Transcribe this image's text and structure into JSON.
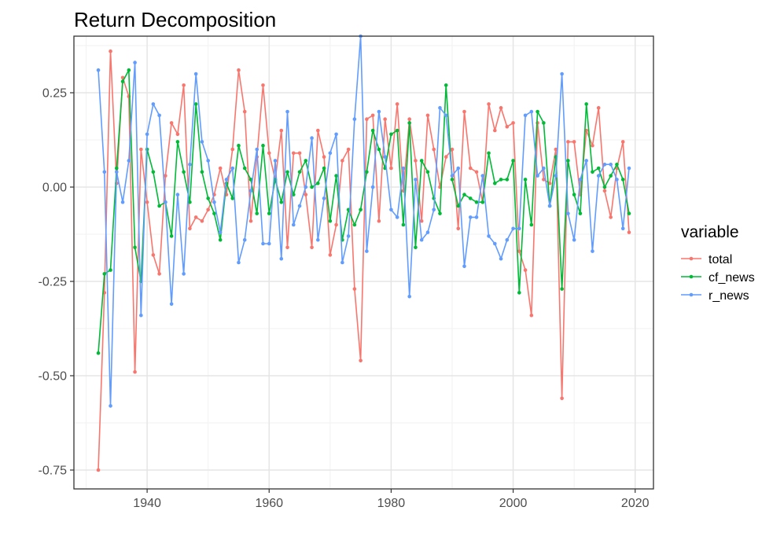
{
  "chart_data": {
    "type": "line",
    "title": "Return Decomposition",
    "xlabel": "",
    "ylabel": "",
    "xlim": [
      1928,
      2023
    ],
    "ylim": [
      -0.8,
      0.4
    ],
    "x_ticks": [
      1940,
      1960,
      1980,
      2000,
      2020
    ],
    "x_tick_labels": [
      "1940",
      "1960",
      "1980",
      "2000",
      "2020"
    ],
    "y_ticks": [
      -0.75,
      -0.5,
      -0.25,
      0.0,
      0.25
    ],
    "y_tick_labels": [
      "-0.75",
      "-0.50",
      "-0.25",
      "0.00",
      "0.25"
    ],
    "grid": true,
    "legend": {
      "title": "variable",
      "position": "right",
      "entries": [
        "total",
        "cf_news",
        "r_news"
      ]
    },
    "x": [
      1932,
      1933,
      1934,
      1935,
      1936,
      1937,
      1938,
      1939,
      1940,
      1941,
      1942,
      1943,
      1944,
      1945,
      1946,
      1947,
      1948,
      1949,
      1950,
      1951,
      1952,
      1953,
      1954,
      1955,
      1956,
      1957,
      1958,
      1959,
      1960,
      1961,
      1962,
      1963,
      1964,
      1965,
      1966,
      1967,
      1968,
      1969,
      1970,
      1971,
      1972,
      1973,
      1974,
      1975,
      1976,
      1977,
      1978,
      1979,
      1980,
      1981,
      1982,
      1983,
      1984,
      1985,
      1986,
      1987,
      1988,
      1989,
      1990,
      1991,
      1992,
      1993,
      1994,
      1995,
      1996,
      1997,
      1998,
      1999,
      2000,
      2001,
      2002,
      2003,
      2004,
      2005,
      2006,
      2007,
      2008,
      2009,
      2010,
      2011,
      2012,
      2013,
      2014,
      2015,
      2016,
      2017,
      2018,
      2019
    ],
    "series": [
      {
        "name": "total",
        "color": "#F8766D",
        "values": [
          -0.75,
          -0.28,
          0.36,
          0.01,
          0.29,
          0.24,
          -0.49,
          0.1,
          -0.04,
          -0.18,
          -0.23,
          0.03,
          0.17,
          0.14,
          0.27,
          -0.11,
          -0.08,
          -0.09,
          -0.06,
          -0.02,
          0.05,
          -0.02,
          0.1,
          0.31,
          0.2,
          -0.09,
          0.08,
          0.27,
          0.09,
          0.02,
          0.15,
          -0.16,
          0.09,
          0.09,
          -0.02,
          -0.16,
          0.15,
          0.08,
          -0.18,
          -0.1,
          0.07,
          0.1,
          -0.27,
          -0.46,
          0.18,
          0.19,
          -0.09,
          0.18,
          0.05,
          0.22,
          -0.01,
          0.18,
          0.07,
          -0.09,
          0.19,
          0.1,
          0.0,
          0.08,
          0.1,
          -0.11,
          0.2,
          0.05,
          0.04,
          -0.04,
          0.22,
          0.15,
          0.21,
          0.16,
          0.17,
          -0.17,
          -0.22,
          -0.34,
          0.17,
          0.02,
          0.01,
          0.1,
          -0.56,
          0.12,
          0.12,
          -0.02,
          0.15,
          0.11,
          0.21,
          -0.01,
          -0.08,
          0.05,
          0.12,
          -0.12
        ]
      },
      {
        "name": "cf_news",
        "color": "#00BA38",
        "values": [
          -0.44,
          -0.23,
          -0.22,
          0.05,
          0.28,
          0.31,
          -0.16,
          -0.25,
          0.1,
          0.04,
          -0.05,
          -0.04,
          -0.13,
          0.12,
          0.04,
          -0.04,
          0.22,
          0.04,
          -0.03,
          -0.07,
          -0.14,
          0.01,
          -0.03,
          0.11,
          0.05,
          0.02,
          -0.07,
          0.11,
          -0.07,
          0.02,
          -0.04,
          0.04,
          -0.02,
          0.04,
          0.07,
          0.0,
          0.01,
          0.05,
          -0.09,
          0.03,
          -0.14,
          -0.06,
          -0.1,
          -0.06,
          0.04,
          0.15,
          0.1,
          0.05,
          0.14,
          0.15,
          -0.1,
          0.17,
          -0.16,
          0.07,
          0.04,
          -0.03,
          -0.07,
          0.27,
          0.02,
          -0.05,
          -0.02,
          -0.03,
          -0.04,
          -0.04,
          0.09,
          0.01,
          0.02,
          0.02,
          0.07,
          -0.28,
          0.02,
          -0.1,
          0.2,
          0.17,
          -0.05,
          0.08,
          -0.27,
          0.07,
          -0.02,
          -0.07,
          0.22,
          0.04,
          0.05,
          0.0,
          0.03,
          0.06,
          0.02,
          -0.07
        ]
      },
      {
        "name": "r_news",
        "color": "#619CFF",
        "values": [
          0.31,
          0.04,
          -0.58,
          0.04,
          -0.04,
          0.07,
          0.33,
          -0.34,
          0.14,
          0.22,
          0.19,
          -0.04,
          -0.31,
          -0.02,
          -0.23,
          0.06,
          0.3,
          0.12,
          0.07,
          -0.04,
          -0.12,
          0.02,
          0.05,
          -0.2,
          -0.14,
          -0.01,
          0.1,
          -0.15,
          -0.15,
          0.07,
          -0.19,
          0.2,
          -0.1,
          -0.05,
          0.0,
          0.13,
          -0.14,
          -0.03,
          0.09,
          0.14,
          -0.2,
          -0.13,
          0.18,
          0.4,
          -0.17,
          0.0,
          0.2,
          0.08,
          -0.06,
          -0.08,
          0.05,
          -0.29,
          0.02,
          -0.14,
          -0.12,
          -0.06,
          0.21,
          0.19,
          0.03,
          0.05,
          -0.21,
          -0.08,
          -0.08,
          0.03,
          -0.13,
          -0.15,
          -0.19,
          -0.14,
          -0.11,
          -0.11,
          0.19,
          0.2,
          0.03,
          0.05,
          -0.05,
          0.03,
          0.3,
          -0.07,
          -0.14,
          0.02,
          0.07,
          -0.17,
          0.03,
          0.06,
          0.06,
          0.02,
          -0.11,
          0.05
        ]
      }
    ]
  }
}
